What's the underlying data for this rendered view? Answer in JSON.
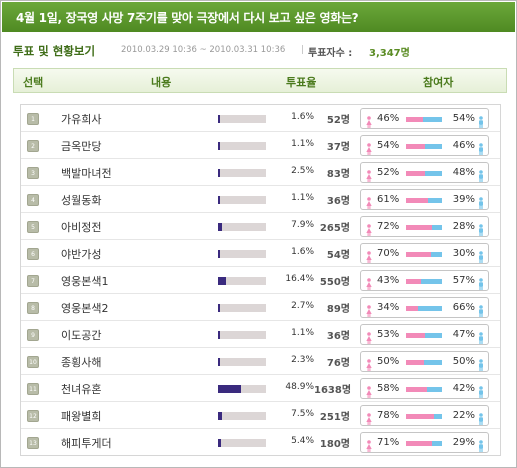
{
  "title": "4월 1일, 장국영 사망 7주기를 맞아 극장에서 다시 보고 싶은 영화는?",
  "info": {
    "section_title": "투표 및 현황보기",
    "date_range": "2010.03.29 10:36 ~ 2010.03.31 10:36",
    "separator": "|",
    "total_label": "투표자수 :",
    "total_value": "3,347명"
  },
  "columns": {
    "select": "선택",
    "content": "내용",
    "rate": "투표율",
    "participants": "참여자"
  },
  "colors": {
    "title_bar": "#5d9a2e",
    "vote_bar": "#3a2a7e",
    "female": "#f28ab8",
    "male": "#74c4ea"
  },
  "icons": {
    "female": "female-icon",
    "male": "male-icon"
  },
  "items": [
    {
      "num": "1",
      "name": "가유희사",
      "share": 0.016,
      "percent": "1.6%",
      "count": "52명",
      "female": "46%",
      "male": "54%",
      "female_share": 0.46
    },
    {
      "num": "2",
      "name": "금옥만당",
      "share": 0.011,
      "percent": "1.1%",
      "count": "37명",
      "female": "54%",
      "male": "46%",
      "female_share": 0.54
    },
    {
      "num": "3",
      "name": "백발마녀전",
      "share": 0.025,
      "percent": "2.5%",
      "count": "83명",
      "female": "52%",
      "male": "48%",
      "female_share": 0.52
    },
    {
      "num": "4",
      "name": "성월동화",
      "share": 0.011,
      "percent": "1.1%",
      "count": "36명",
      "female": "61%",
      "male": "39%",
      "female_share": 0.61
    },
    {
      "num": "5",
      "name": "아비정전",
      "share": 0.079,
      "percent": "7.9%",
      "count": "265명",
      "female": "72%",
      "male": "28%",
      "female_share": 0.72
    },
    {
      "num": "6",
      "name": "야반가성",
      "share": 0.016,
      "percent": "1.6%",
      "count": "54명",
      "female": "70%",
      "male": "30%",
      "female_share": 0.7
    },
    {
      "num": "7",
      "name": "영웅본색1",
      "share": 0.164,
      "percent": "16.4%",
      "count": "550명",
      "female": "43%",
      "male": "57%",
      "female_share": 0.43
    },
    {
      "num": "8",
      "name": "영웅본색2",
      "share": 0.027,
      "percent": "2.7%",
      "count": "89명",
      "female": "34%",
      "male": "66%",
      "female_share": 0.34
    },
    {
      "num": "9",
      "name": "이도공간",
      "share": 0.011,
      "percent": "1.1%",
      "count": "36명",
      "female": "53%",
      "male": "47%",
      "female_share": 0.53
    },
    {
      "num": "10",
      "name": "종횡사해",
      "share": 0.023,
      "percent": "2.3%",
      "count": "76명",
      "female": "50%",
      "male": "50%",
      "female_share": 0.5
    },
    {
      "num": "11",
      "name": "천녀유혼",
      "share": 0.489,
      "percent": "48.9%",
      "count": "1638명",
      "female": "58%",
      "male": "42%",
      "female_share": 0.58
    },
    {
      "num": "12",
      "name": "패왕별희",
      "share": 0.075,
      "percent": "7.5%",
      "count": "251명",
      "female": "78%",
      "male": "22%",
      "female_share": 0.78
    },
    {
      "num": "13",
      "name": "해피투게더",
      "share": 0.054,
      "percent": "5.4%",
      "count": "180명",
      "female": "71%",
      "male": "29%",
      "female_share": 0.71
    }
  ]
}
